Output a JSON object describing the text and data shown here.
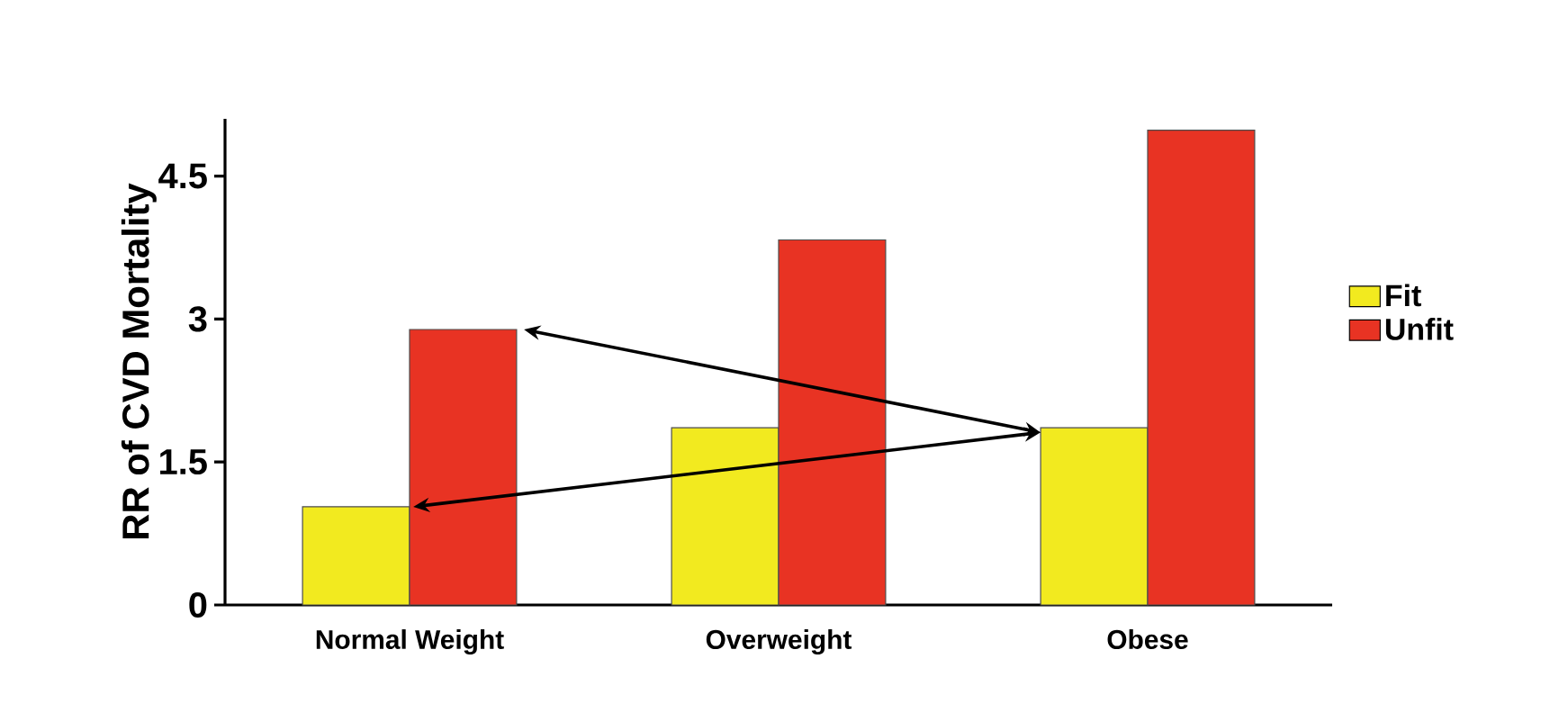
{
  "chart_data": {
    "type": "bar",
    "ylabel": "RR of CVD Mortality",
    "categories": [
      "Normal Weight",
      "Overweight",
      "Obese"
    ],
    "series": [
      {
        "name": "Fit",
        "color": "#f2ea1f",
        "values": [
          1.03,
          1.86,
          1.86
        ]
      },
      {
        "name": "Unfit",
        "color": "#e83323",
        "values": [
          2.89,
          3.83,
          4.98
        ]
      }
    ],
    "ylim": [
      0,
      5.1
    ],
    "yticks": [
      0,
      1.5,
      3,
      4.5
    ],
    "legend": "right"
  }
}
